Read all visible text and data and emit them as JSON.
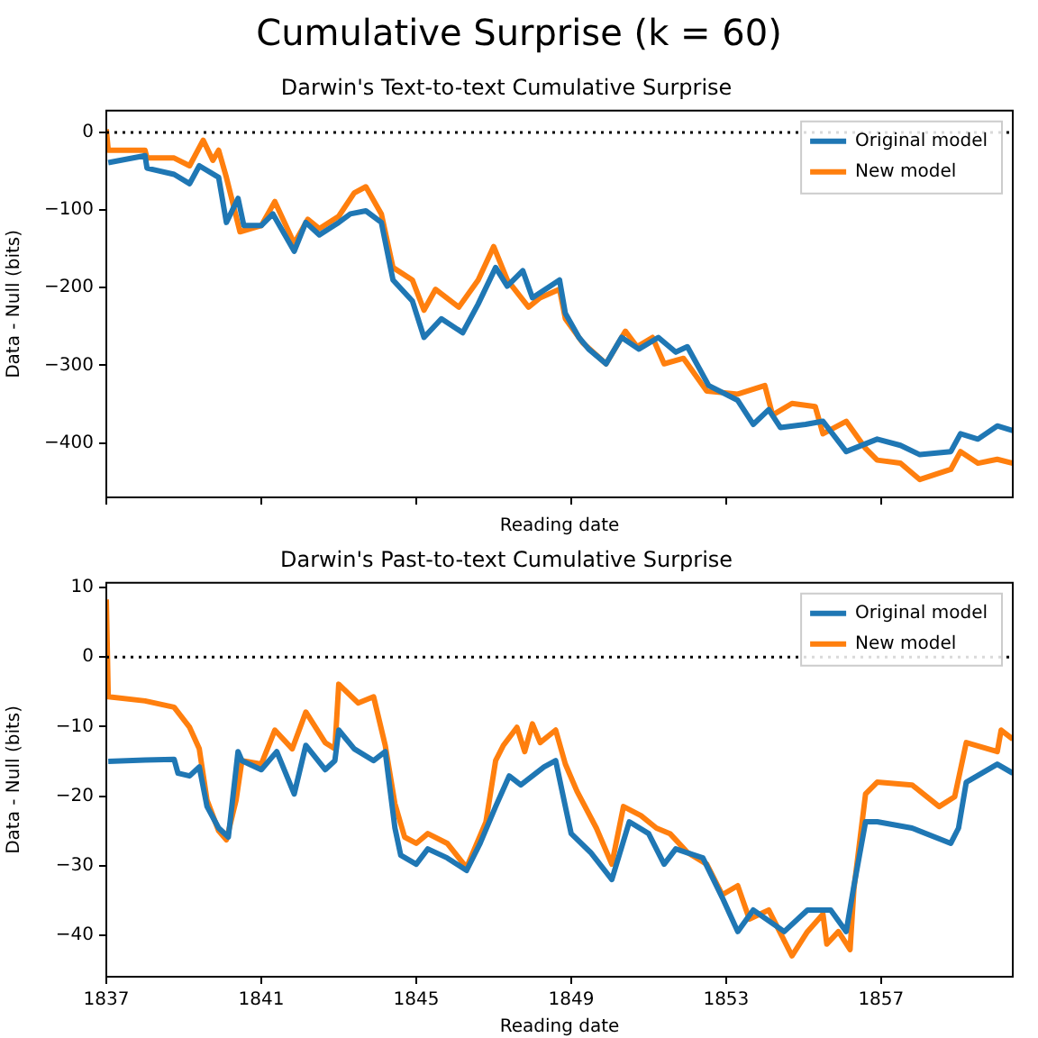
{
  "chart_data": [
    {
      "type": "line",
      "title": "Cumulative Surprise (k = 60)",
      "subtitle": "Darwin's Text-to-text Cumulative Surprise",
      "xlabel": "Reading date",
      "ylabel": "Data - Null (bits)",
      "xlim": [
        1837,
        1860.4
      ],
      "xticks": [
        1837,
        1841,
        1845,
        1849,
        1853,
        1857
      ],
      "ylim": [
        -470,
        28
      ],
      "yticks": [
        -400,
        -300,
        -200,
        -100,
        0
      ],
      "tick_labels": "y",
      "grid": false,
      "legend": "top right",
      "ref_lines": [
        {
          "axis": "y",
          "value": 0,
          "color": "#000000",
          "line_style": "dotted"
        }
      ],
      "series": [
        {
          "name": "Original model",
          "color": "#1f77b4",
          "x": [
            1837.05,
            1838.0,
            1838.05,
            1838.75,
            1839.15,
            1839.4,
            1839.9,
            1840.1,
            1840.4,
            1840.55,
            1841.0,
            1841.3,
            1841.85,
            1842.15,
            1842.5,
            1843.0,
            1843.3,
            1843.7,
            1844.1,
            1844.4,
            1844.9,
            1845.2,
            1845.65,
            1846.2,
            1846.6,
            1847.05,
            1847.35,
            1847.75,
            1848.0,
            1848.7,
            1848.85,
            1849.2,
            1849.45,
            1849.9,
            1850.3,
            1850.75,
            1851.25,
            1851.7,
            1852.0,
            1852.55,
            1853.3,
            1853.7,
            1854.1,
            1854.4,
            1855.05,
            1855.5,
            1856.1,
            1856.9,
            1857.5,
            1858.0,
            1858.8,
            1859.05,
            1859.5,
            1860.0,
            1860.4
          ],
          "values": [
            -39,
            -30,
            -46,
            -54,
            -66,
            -43,
            -58,
            -116,
            -85,
            -120,
            -120,
            -105,
            -153,
            -116,
            -132,
            -116,
            -105,
            -101,
            -116,
            -190,
            -217,
            -264,
            -240,
            -258,
            -221,
            -174,
            -198,
            -178,
            -213,
            -190,
            -233,
            -264,
            -279,
            -298,
            -264,
            -279,
            -264,
            -283,
            -276,
            -326,
            -345,
            -376,
            -357,
            -380,
            -376,
            -372,
            -411,
            -395,
            -403,
            -415,
            -411,
            -388,
            -395,
            -378,
            -384
          ]
        },
        {
          "name": "New model",
          "color": "#ff7f0e",
          "x": [
            1837.0,
            1837.05,
            1838.0,
            1838.05,
            1838.75,
            1839.15,
            1839.5,
            1839.75,
            1839.9,
            1840.1,
            1840.45,
            1841.0,
            1841.35,
            1841.85,
            1842.2,
            1842.5,
            1843.0,
            1843.4,
            1843.7,
            1844.1,
            1844.4,
            1844.9,
            1845.2,
            1845.5,
            1846.1,
            1846.6,
            1847.0,
            1847.35,
            1847.9,
            1848.2,
            1848.7,
            1848.85,
            1849.3,
            1849.9,
            1850.4,
            1850.7,
            1851.1,
            1851.4,
            1851.9,
            1852.5,
            1853.3,
            1854.0,
            1854.2,
            1854.7,
            1855.3,
            1855.5,
            1856.1,
            1856.6,
            1856.9,
            1857.5,
            1858.0,
            1858.8,
            1859.05,
            1859.5,
            1860.0,
            1860.4
          ],
          "values": [
            4,
            -23,
            -23,
            -33,
            -33,
            -43,
            -10,
            -36,
            -23,
            -58,
            -128,
            -120,
            -89,
            -143,
            -112,
            -124,
            -108,
            -78,
            -70,
            -105,
            -174,
            -190,
            -229,
            -202,
            -225,
            -190,
            -147,
            -190,
            -225,
            -213,
            -202,
            -240,
            -271,
            -298,
            -256,
            -276,
            -264,
            -298,
            -291,
            -333,
            -337,
            -326,
            -364,
            -349,
            -353,
            -388,
            -372,
            -407,
            -422,
            -426,
            -447,
            -434,
            -411,
            -426,
            -421,
            -426
          ]
        }
      ]
    },
    {
      "type": "line",
      "title": "Darwin's Past-to-text Cumulative Surprise",
      "xlabel": "Reading date",
      "ylabel": "Data - Null (bits)",
      "xlim": [
        1837,
        1860.4
      ],
      "xticks": [
        1837,
        1841,
        1845,
        1849,
        1853,
        1857
      ],
      "ylim": [
        -46,
        10.7
      ],
      "yticks": [
        -40,
        -30,
        -20,
        -10,
        0,
        10
      ],
      "grid": false,
      "legend": "top right",
      "ref_lines": [
        {
          "axis": "y",
          "value": 0,
          "color": "#000000",
          "line_style": "dotted"
        }
      ],
      "series": [
        {
          "name": "Original model",
          "color": "#1f77b4",
          "x": [
            1837.05,
            1838.0,
            1838.75,
            1838.85,
            1839.15,
            1839.4,
            1839.6,
            1839.9,
            1840.15,
            1840.4,
            1840.5,
            1841.0,
            1841.4,
            1841.85,
            1842.15,
            1842.65,
            1842.9,
            1843.0,
            1843.4,
            1843.9,
            1844.2,
            1844.45,
            1844.6,
            1845.0,
            1845.3,
            1845.8,
            1846.3,
            1846.65,
            1847.05,
            1847.4,
            1847.7,
            1848.3,
            1848.6,
            1848.85,
            1849.0,
            1849.5,
            1850.05,
            1850.5,
            1851.0,
            1851.4,
            1851.7,
            1852.4,
            1852.9,
            1853.3,
            1853.7,
            1854.5,
            1855.1,
            1855.7,
            1856.1,
            1856.3,
            1856.6,
            1856.9,
            1857.8,
            1858.8,
            1859.0,
            1859.2,
            1860.0,
            1860.4
          ],
          "values": [
            -15,
            -14.8,
            -14.7,
            -16.7,
            -17.1,
            -15.8,
            -21.5,
            -24.6,
            -25.9,
            -13.6,
            -14.9,
            -16.2,
            -13.6,
            -19.7,
            -12.7,
            -16.2,
            -14.9,
            -10.5,
            -13.2,
            -14.9,
            -13.6,
            -24.6,
            -28.5,
            -29.8,
            -27.6,
            -28.9,
            -30.7,
            -26.8,
            -21.5,
            -17.1,
            -18.4,
            -15.8,
            -14.9,
            -21.5,
            -25.4,
            -28.1,
            -32,
            -23.7,
            -25.4,
            -29.8,
            -27.6,
            -28.9,
            -34.6,
            -39.5,
            -36.4,
            -39.5,
            -36.4,
            -36.4,
            -39.5,
            -32.9,
            -23.7,
            -23.7,
            -24.6,
            -26.8,
            -24.6,
            -18,
            -15.4,
            -16.7
          ]
        },
        {
          "name": "New model",
          "color": "#ff7f0e",
          "x": [
            1837.0,
            1837.05,
            1838.0,
            1838.75,
            1839.15,
            1839.4,
            1839.6,
            1839.9,
            1840.1,
            1840.35,
            1840.5,
            1841.0,
            1841.35,
            1841.8,
            1842.15,
            1842.65,
            1842.9,
            1843.0,
            1843.5,
            1843.9,
            1844.2,
            1844.45,
            1844.7,
            1845.0,
            1845.3,
            1845.8,
            1846.3,
            1846.8,
            1847.05,
            1847.25,
            1847.6,
            1847.8,
            1848.0,
            1848.2,
            1848.6,
            1848.85,
            1849.15,
            1849.65,
            1850.05,
            1850.35,
            1850.8,
            1851.2,
            1851.55,
            1852.0,
            1852.5,
            1852.9,
            1853.3,
            1853.6,
            1854.1,
            1854.7,
            1855.1,
            1855.5,
            1855.6,
            1855.9,
            1856.2,
            1856.3,
            1856.6,
            1856.9,
            1857.8,
            1858.5,
            1858.9,
            1859.2,
            1860.0,
            1860.1,
            1860.4
          ],
          "values": [
            8.3,
            -5.7,
            -6.3,
            -7.2,
            -10.1,
            -13.2,
            -20.6,
            -25,
            -26.3,
            -20.6,
            -14.9,
            -15.4,
            -10.5,
            -13.2,
            -7.9,
            -12.3,
            -13.2,
            -3.9,
            -6.6,
            -5.7,
            -12.7,
            -21.1,
            -25.9,
            -26.8,
            -25.4,
            -26.8,
            -30.3,
            -23.7,
            -14.9,
            -12.7,
            -10.1,
            -13.6,
            -9.6,
            -12.3,
            -10.5,
            -15.4,
            -19.3,
            -24.6,
            -29.8,
            -21.5,
            -22.8,
            -24.6,
            -25.4,
            -28.1,
            -29.8,
            -34.2,
            -32.9,
            -37.7,
            -36.4,
            -43,
            -39.5,
            -37,
            -41.3,
            -39.5,
            -42.1,
            -33.3,
            -19.7,
            -18,
            -18.4,
            -21.5,
            -20.1,
            -12.3,
            -13.6,
            -10.5,
            -11.8
          ]
        }
      ]
    }
  ]
}
